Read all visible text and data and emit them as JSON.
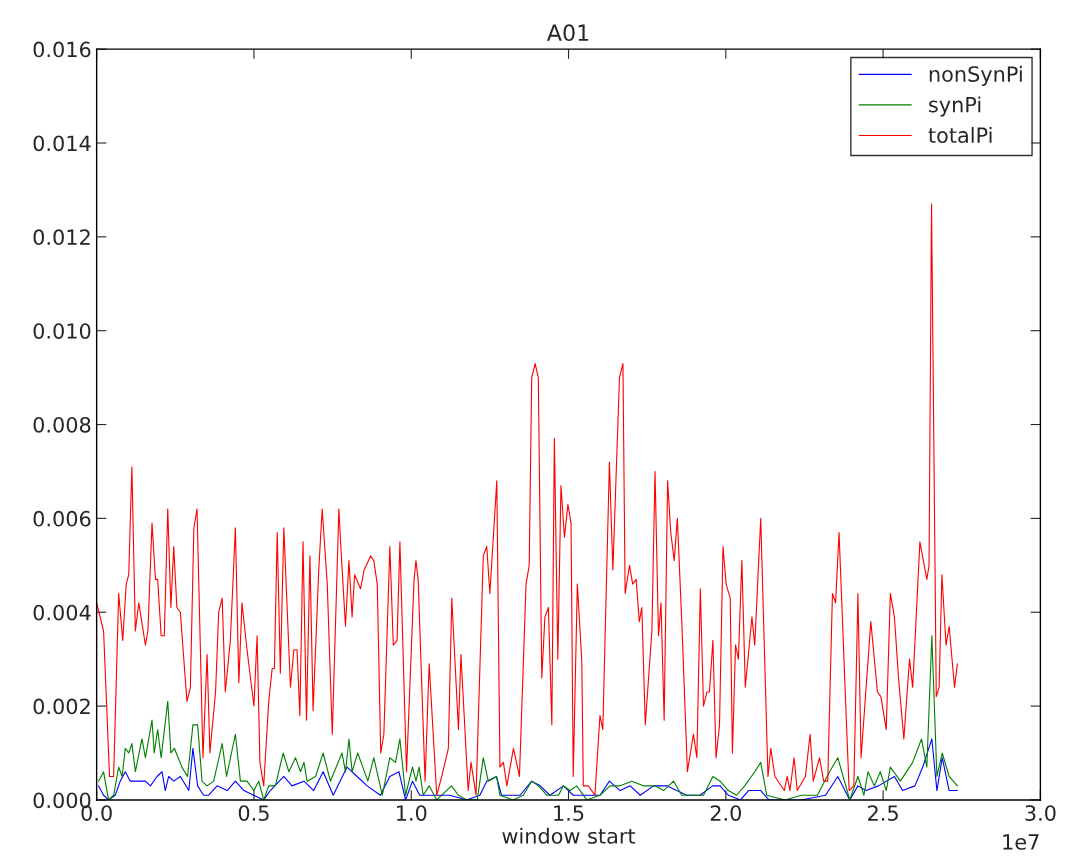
{
  "chart_data": {
    "type": "line",
    "title": "A01",
    "xlabel": "window start",
    "annotations": [
      "1e7"
    ],
    "xlim": [
      0,
      3.0
    ],
    "xticks": [
      {
        "value": 0,
        "label": "0.0"
      },
      0.5,
      {
        "value": 1,
        "label": "1.0"
      },
      1.5,
      {
        "value": 2,
        "label": "2.0"
      },
      2.5,
      {
        "value": 3,
        "label": "3.0"
      }
    ],
    "ylim": [
      0,
      0.016
    ],
    "yticks": [
      {
        "value": 0,
        "label": "0.000"
      },
      0.002,
      0.004,
      0.006,
      0.008,
      {
        "value": 0.01,
        "label": "0.010"
      },
      0.012,
      0.014,
      0.016
    ],
    "grid": false,
    "legend": "top right",
    "line_style": "solid",
    "marker": "none",
    "series": [
      {
        "name": "nonSynPi",
        "color": "#0000ff",
        "x": [
          0.006,
          0.022,
          0.038,
          0.059,
          0.075,
          0.091,
          0.107,
          0.128,
          0.155,
          0.171,
          0.192,
          0.208,
          0.218,
          0.229,
          0.245,
          0.266,
          0.293,
          0.306,
          0.321,
          0.34,
          0.356,
          0.383,
          0.415,
          0.441,
          0.468,
          0.499,
          0.531,
          0.552,
          0.595,
          0.621,
          0.659,
          0.69,
          0.72,
          0.752,
          0.796,
          0.828,
          0.86,
          0.902,
          0.932,
          0.961,
          0.982,
          1.004,
          1.027,
          1.059,
          1.123,
          1.176,
          1.218,
          1.24,
          1.271,
          1.287,
          1.346,
          1.383,
          1.41,
          1.441,
          1.484,
          1.515,
          1.563,
          1.6,
          1.63,
          1.664,
          1.696,
          1.728,
          1.77,
          1.812,
          1.844,
          1.876,
          1.918,
          1.958,
          1.982,
          2.008,
          2.047,
          2.072,
          2.111,
          2.137,
          2.24,
          2.317,
          2.356,
          2.394,
          2.42,
          2.446,
          2.485,
          2.536,
          2.562,
          2.601,
          2.626,
          2.655,
          2.671,
          2.688,
          2.71,
          2.736
        ],
        "values": [
          0.0003,
          0.0001,
          0,
          0.0001,
          0.0004,
          0.0006,
          0.0004,
          0.0004,
          0.0004,
          0.0003,
          0.0005,
          0.0006,
          0.0002,
          0.0005,
          0.0004,
          0.0005,
          0.0002,
          0.0011,
          0.0003,
          0.0001,
          0.0001,
          0.0003,
          0.0002,
          0.0004,
          0.0002,
          0.0001,
          0,
          0.0002,
          0.0005,
          0.0003,
          0.0004,
          0.0002,
          0.0006,
          0.0001,
          0.0007,
          0.0005,
          0.0003,
          0.0001,
          0.0005,
          0.0006,
          0,
          0.0004,
          0.0001,
          0.0001,
          0.0001,
          0,
          0.0001,
          0.0004,
          0.0005,
          0.0001,
          0.0001,
          0.0004,
          0.0003,
          0.0001,
          0.0003,
          0.0001,
          0.0001,
          0.0001,
          0.0004,
          0.0002,
          0.0003,
          0.0001,
          0.0003,
          0.0003,
          0.0002,
          0.0001,
          0.0001,
          0.0003,
          0.0003,
          0.0001,
          0,
          0.0002,
          0.0002,
          0,
          0,
          0.0001,
          0.0005,
          0,
          0.0003,
          0.0002,
          0.0003,
          0.0005,
          0.0002,
          0.0003,
          0.0007,
          0.0013,
          0.0002,
          0.0009,
          0.0002,
          0.0002
        ]
      },
      {
        "name": "synPi",
        "color": "#008000",
        "x": [
          0.006,
          0.022,
          0.038,
          0.054,
          0.07,
          0.081,
          0.091,
          0.102,
          0.112,
          0.123,
          0.144,
          0.155,
          0.176,
          0.183,
          0.194,
          0.205,
          0.226,
          0.236,
          0.247,
          0.271,
          0.289,
          0.306,
          0.321,
          0.335,
          0.351,
          0.372,
          0.399,
          0.413,
          0.441,
          0.457,
          0.478,
          0.5,
          0.515,
          0.531,
          0.547,
          0.568,
          0.593,
          0.611,
          0.632,
          0.648,
          0.659,
          0.669,
          0.696,
          0.72,
          0.743,
          0.78,
          0.791,
          0.802,
          0.812,
          0.83,
          0.862,
          0.881,
          0.908,
          0.932,
          0.95,
          0.964,
          0.982,
          1.004,
          1.015,
          1.025,
          1.038,
          1.057,
          1.081,
          1.128,
          1.15,
          1.176,
          1.21,
          1.229,
          1.245,
          1.271,
          1.282,
          1.324,
          1.356,
          1.383,
          1.404,
          1.431,
          1.468,
          1.484,
          1.505,
          1.526,
          1.558,
          1.6,
          1.632,
          1.664,
          1.701,
          1.738,
          1.775,
          1.802,
          1.834,
          1.86,
          1.897,
          1.929,
          1.959,
          1.982,
          2.008,
          2.034,
          2.06,
          2.092,
          2.111,
          2.13,
          2.188,
          2.24,
          2.291,
          2.33,
          2.356,
          2.394,
          2.42,
          2.439,
          2.452,
          2.472,
          2.491,
          2.51,
          2.523,
          2.555,
          2.594,
          2.622,
          2.639,
          2.655,
          2.671,
          2.688,
          2.71,
          2.736
        ],
        "values": [
          0.0004,
          0.0006,
          0,
          0.0001,
          0.0007,
          0.0005,
          0.0011,
          0.001,
          0.0012,
          0.0006,
          0.0013,
          0.0009,
          0.0017,
          0.001,
          0.0015,
          0.0009,
          0.0021,
          0.001,
          0.0011,
          0.0007,
          0.0005,
          0.0016,
          0.0016,
          0.0004,
          0.0003,
          0.0004,
          0.0012,
          0.0005,
          0.0014,
          0.0004,
          0.0004,
          0.0002,
          0.0004,
          0,
          0.0003,
          0.0003,
          0.001,
          0.0006,
          0.0009,
          0.0006,
          0.0008,
          0.0004,
          0.0005,
          0.001,
          0.0004,
          0.001,
          0.0006,
          0.0013,
          0.0006,
          0.001,
          0.0004,
          0.0009,
          0.0001,
          0.0009,
          0.0008,
          0.0013,
          0.0001,
          0.0007,
          0.0004,
          0.0007,
          0.0001,
          0.0003,
          0,
          0.0003,
          0.0001,
          0,
          0,
          0.0009,
          0.0004,
          0.0005,
          0.0001,
          0,
          0.0001,
          0.0004,
          0.0003,
          0.0001,
          0.0001,
          0.0003,
          0.0002,
          0.0003,
          0,
          0.0001,
          0.0003,
          0.0003,
          0.0004,
          0.0003,
          0.0003,
          0.0002,
          0.0004,
          0.0001,
          0.0001,
          0.0001,
          0.0005,
          0.0004,
          0.0002,
          0.0001,
          0.0003,
          0.0006,
          0.0008,
          0.0001,
          0,
          0.0001,
          0.0001,
          0.0006,
          0.0009,
          0,
          0.0005,
          0.0001,
          0.0006,
          0.0003,
          0.0006,
          0.0002,
          0.0007,
          0.0004,
          0.0008,
          0.0013,
          0.0007,
          0.0035,
          0.0005,
          0.001,
          0.0005,
          0.0003
        ]
      },
      {
        "name": "totalPi",
        "color": "#ff0000",
        "x": [
          0,
          0.022,
          0.041,
          0.054,
          0.07,
          0.083,
          0.094,
          0.102,
          0.112,
          0.123,
          0.134,
          0.155,
          0.163,
          0.176,
          0.187,
          0.194,
          0.205,
          0.215,
          0.226,
          0.236,
          0.245,
          0.255,
          0.266,
          0.287,
          0.298,
          0.309,
          0.319,
          0.338,
          0.351,
          0.36,
          0.378,
          0.388,
          0.399,
          0.409,
          0.425,
          0.441,
          0.452,
          0.462,
          0.478,
          0.5,
          0.51,
          0.519,
          0.531,
          0.547,
          0.558,
          0.565,
          0.574,
          0.584,
          0.595,
          0.616,
          0.627,
          0.637,
          0.646,
          0.656,
          0.667,
          0.678,
          0.688,
          0.706,
          0.717,
          0.733,
          0.749,
          0.77,
          0.777,
          0.791,
          0.802,
          0.812,
          0.82,
          0.839,
          0.85,
          0.871,
          0.881,
          0.892,
          0.903,
          0.913,
          0.932,
          0.943,
          0.955,
          0.964,
          0.985,
          1.009,
          1.015,
          1.022,
          1.044,
          1.057,
          1.081,
          1.097,
          1.118,
          1.129,
          1.15,
          1.158,
          1.181,
          1.19,
          1.206,
          1.229,
          1.24,
          1.25,
          1.272,
          1.282,
          1.293,
          1.304,
          1.325,
          1.344,
          1.365,
          1.375,
          1.383,
          1.394,
          1.404,
          1.415,
          1.425,
          1.436,
          1.447,
          1.455,
          1.466,
          1.476,
          1.487,
          1.498,
          1.508,
          1.515,
          1.528,
          1.542,
          1.547,
          1.563,
          1.584,
          1.6,
          1.609,
          1.63,
          1.641,
          1.662,
          1.673,
          1.68,
          1.694,
          1.704,
          1.715,
          1.725,
          1.733,
          1.744,
          1.765,
          1.775,
          1.786,
          1.794,
          1.804,
          1.815,
          1.825,
          1.836,
          1.846,
          1.86,
          1.878,
          1.897,
          1.908,
          1.919,
          1.929,
          1.94,
          1.948,
          1.959,
          1.969,
          1.98,
          1.991,
          2.001,
          2.014,
          2.021,
          2.031,
          2.04,
          2.051,
          2.062,
          2.083,
          2.092,
          2.111,
          2.134,
          2.143,
          2.156,
          2.186,
          2.195,
          2.204,
          2.217,
          2.227,
          2.253,
          2.268,
          2.278,
          2.298,
          2.311,
          2.324,
          2.339,
          2.349,
          2.36,
          2.375,
          2.392,
          2.407,
          2.42,
          2.43,
          2.461,
          2.482,
          2.493,
          2.51,
          2.523,
          2.536,
          2.549,
          2.566,
          2.584,
          2.594,
          2.617,
          2.639,
          2.646,
          2.654,
          2.669,
          2.678,
          2.687,
          2.7,
          2.71,
          2.727,
          2.736
        ],
        "values": [
          0.0042,
          0.0036,
          0.0005,
          0.0005,
          0.0044,
          0.0034,
          0.0046,
          0.0048,
          0.0071,
          0.0036,
          0.0042,
          0.0033,
          0.0036,
          0.0059,
          0.0047,
          0.0047,
          0.0035,
          0.0035,
          0.0062,
          0.0041,
          0.0054,
          0.0041,
          0.004,
          0.0021,
          0.0024,
          0.0058,
          0.0062,
          0.0009,
          0.0031,
          0.001,
          0.0023,
          0.004,
          0.0043,
          0.0023,
          0.0034,
          0.0058,
          0.0025,
          0.0042,
          0.0032,
          0.002,
          0.0035,
          0.0008,
          0.0003,
          0.0021,
          0.0028,
          0.0028,
          0.0057,
          0.0027,
          0.0058,
          0.0024,
          0.0032,
          0.0032,
          0.0018,
          0.0055,
          0.0017,
          0.0052,
          0.0019,
          0.0049,
          0.0062,
          0.0046,
          0.0014,
          0.0062,
          0.0053,
          0.0037,
          0.0051,
          0.0039,
          0.0048,
          0.0045,
          0.0049,
          0.0052,
          0.0051,
          0.0046,
          0.001,
          0.0014,
          0.0054,
          0.0033,
          0.0034,
          0.0055,
          0.0006,
          0.0047,
          0.0051,
          0.0047,
          0.0004,
          0.0029,
          0.0001,
          0.0005,
          0.0011,
          0.0043,
          0.0015,
          0.0031,
          0.0002,
          0.0008,
          0.0001,
          0.0052,
          0.0054,
          0.0044,
          0.0068,
          0.0007,
          0.0008,
          0.0003,
          0.0011,
          0.0005,
          0.0046,
          0.005,
          0.009,
          0.0093,
          0.009,
          0.0026,
          0.0039,
          0.0041,
          0.0016,
          0.0077,
          0.003,
          0.0067,
          0.0056,
          0.0063,
          0.0059,
          0.0005,
          0.0046,
          0.003,
          0.0003,
          0.0003,
          0.0001,
          0.0018,
          0.0015,
          0.0072,
          0.0049,
          0.009,
          0.0093,
          0.0044,
          0.005,
          0.0046,
          0.0047,
          0.0038,
          0.0041,
          0.0016,
          0.0036,
          0.007,
          0.0035,
          0.0042,
          0.0017,
          0.0068,
          0.0057,
          0.0051,
          0.006,
          0.0038,
          0.0006,
          0.0014,
          0.0009,
          0.0045,
          0.002,
          0.0023,
          0.0023,
          0.0034,
          0.0009,
          0.0016,
          0.0054,
          0.0046,
          0.0043,
          0.001,
          0.0033,
          0.003,
          0.0051,
          0.0024,
          0.0039,
          0.0033,
          0.006,
          0.0005,
          0.0011,
          0.0005,
          0.0002,
          0.0005,
          0.0002,
          0.0009,
          0.0002,
          0.0005,
          0.0014,
          0.0004,
          0.0009,
          0.0004,
          0.0004,
          0.0044,
          0.0042,
          0.0057,
          0.0031,
          0.0002,
          0.0003,
          0.0044,
          0.0009,
          0.0038,
          0.0023,
          0.0022,
          0.0015,
          0.0044,
          0.0039,
          0.0026,
          0.0013,
          0.003,
          0.0024,
          0.0055,
          0.0047,
          0.005,
          0.0127,
          0.0022,
          0.0024,
          0.0048,
          0.0033,
          0.0037,
          0.0024,
          0.0029
        ]
      }
    ]
  }
}
